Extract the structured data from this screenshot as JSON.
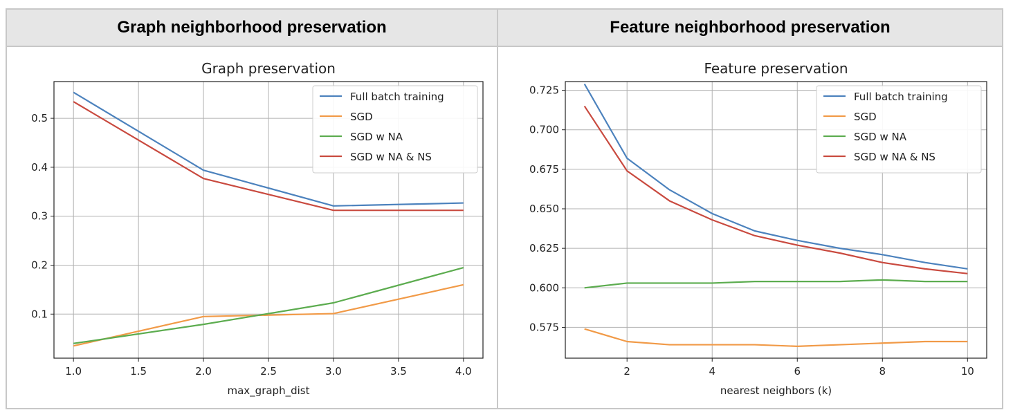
{
  "panels": [
    {
      "header": "Graph neighborhood preservation"
    },
    {
      "header": "Feature neighborhood preservation"
    }
  ],
  "colors": {
    "Full batch training": "#4c82bd",
    "SGD": "#f19a47",
    "SGD w NA": "#5cac4f",
    "SGD w NA & NS": "#c94a3f"
  },
  "chart_data": [
    {
      "type": "line",
      "title": "Graph preservation",
      "xlabel": "max_graph_dist",
      "ylabel": "",
      "xlim": [
        0.85,
        4.15
      ],
      "ylim": [
        0.01,
        0.575
      ],
      "xticks": [
        1.0,
        1.5,
        2.0,
        2.5,
        3.0,
        3.5,
        4.0
      ],
      "xtick_labels": [
        "1.0",
        "1.5",
        "2.0",
        "2.5",
        "3.0",
        "3.5",
        "4.0"
      ],
      "yticks": [
        0.1,
        0.2,
        0.3,
        0.4,
        0.5
      ],
      "ytick_labels": [
        "0.1",
        "0.2",
        "0.3",
        "0.4",
        "0.5"
      ],
      "grid": true,
      "legend": "top-right",
      "x": [
        1.0,
        2.0,
        3.0,
        4.0
      ],
      "series": [
        {
          "name": "Full batch training",
          "values": [
            0.553,
            0.394,
            0.321,
            0.327
          ]
        },
        {
          "name": "SGD",
          "values": [
            0.035,
            0.095,
            0.101,
            0.16
          ]
        },
        {
          "name": "SGD w NA",
          "values": [
            0.04,
            0.079,
            0.123,
            0.195
          ]
        },
        {
          "name": "SGD w NA & NS",
          "values": [
            0.534,
            0.377,
            0.312,
            0.312
          ]
        }
      ]
    },
    {
      "type": "line",
      "title": "Feature preservation",
      "xlabel": "nearest neighbors (k)",
      "ylabel": "",
      "xlim": [
        0.55,
        10.45
      ],
      "ylim": [
        0.5555,
        0.7305
      ],
      "xticks": [
        2,
        4,
        6,
        8,
        10
      ],
      "xtick_labels": [
        "2",
        "4",
        "6",
        "8",
        "10"
      ],
      "yticks": [
        0.575,
        0.6,
        0.625,
        0.65,
        0.675,
        0.7,
        0.725
      ],
      "ytick_labels": [
        "0.575",
        "0.600",
        "0.625",
        "0.650",
        "0.675",
        "0.700",
        "0.725"
      ],
      "grid": true,
      "legend": "top-right",
      "x": [
        1,
        2,
        3,
        4,
        5,
        6,
        7,
        8,
        9,
        10
      ],
      "series": [
        {
          "name": "Full batch training",
          "values": [
            0.729,
            0.682,
            0.662,
            0.647,
            0.636,
            0.63,
            0.625,
            0.621,
            0.616,
            0.612
          ]
        },
        {
          "name": "SGD",
          "values": [
            0.574,
            0.566,
            0.564,
            0.564,
            0.564,
            0.563,
            0.564,
            0.565,
            0.566,
            0.566
          ]
        },
        {
          "name": "SGD w NA",
          "values": [
            0.6,
            0.603,
            0.603,
            0.603,
            0.604,
            0.604,
            0.604,
            0.605,
            0.604,
            0.604
          ]
        },
        {
          "name": "SGD w NA & NS",
          "values": [
            0.715,
            0.674,
            0.655,
            0.643,
            0.633,
            0.627,
            0.622,
            0.616,
            0.612,
            0.609
          ]
        }
      ]
    }
  ]
}
